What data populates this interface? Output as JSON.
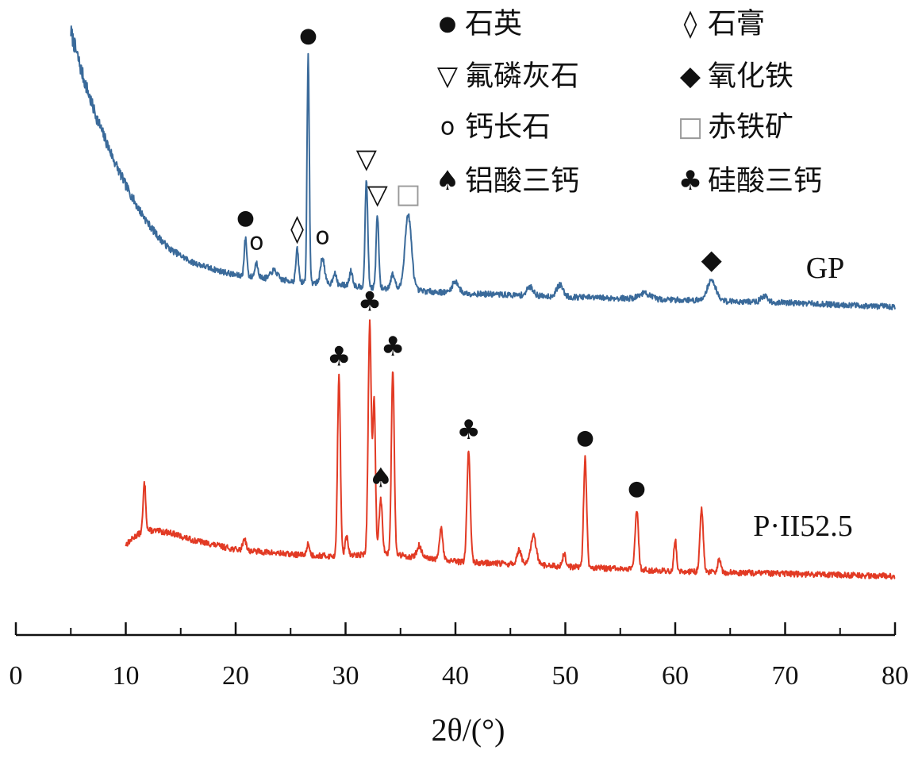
{
  "chart_data": {
    "type": "line",
    "xlabel": "2θ/(°)",
    "xlim": [
      0,
      80
    ],
    "xticks": [
      0,
      10,
      20,
      30,
      40,
      50,
      60,
      70,
      80
    ],
    "grid": false,
    "legend_position": "top-right",
    "legend": [
      {
        "symbol": "●",
        "label": "石英"
      },
      {
        "symbol": "◊",
        "label": "石膏"
      },
      {
        "symbol": "▽",
        "label": "氟磷灰石"
      },
      {
        "symbol": "◆",
        "label": "氧化铁"
      },
      {
        "symbol": "o",
        "label": "钙长石"
      },
      {
        "symbol": "□",
        "label": "赤铁矿"
      },
      {
        "symbol": "♠",
        "label": "铝酸三钙"
      },
      {
        "symbol": "♣",
        "label": "硅酸三钙"
      }
    ],
    "series": [
      {
        "name": "GP",
        "color": "#3a6a9a",
        "x_start": 5,
        "x_end": 80,
        "baseline": [
          [
            5,
            1.0
          ],
          [
            6,
            0.86
          ],
          [
            7,
            0.74
          ],
          [
            8,
            0.64
          ],
          [
            9,
            0.55
          ],
          [
            10,
            0.47
          ],
          [
            11,
            0.4
          ],
          [
            12,
            0.34
          ],
          [
            13,
            0.29
          ],
          [
            14,
            0.25
          ],
          [
            16,
            0.205
          ],
          [
            18,
            0.18
          ],
          [
            20,
            0.16
          ],
          [
            25,
            0.14
          ],
          [
            30,
            0.125
          ],
          [
            35,
            0.11
          ],
          [
            40,
            0.098
          ],
          [
            50,
            0.085
          ],
          [
            60,
            0.075
          ],
          [
            70,
            0.065
          ],
          [
            80,
            0.05
          ]
        ],
        "peaks": [
          {
            "x": 20.9,
            "h": 0.13,
            "w": 0.12,
            "marker": "●"
          },
          {
            "x": 21.9,
            "h": 0.05,
            "w": 0.15,
            "marker": "o"
          },
          {
            "x": 23.5,
            "h": 0.03,
            "w": 0.3
          },
          {
            "x": 25.6,
            "h": 0.11,
            "w": 0.12,
            "marker": "◊"
          },
          {
            "x": 26.6,
            "h": 0.78,
            "w": 0.1,
            "marker": "●"
          },
          {
            "x": 27.9,
            "h": 0.09,
            "w": 0.18,
            "marker": "o"
          },
          {
            "x": 29.0,
            "h": 0.04,
            "w": 0.15
          },
          {
            "x": 30.5,
            "h": 0.05,
            "w": 0.15
          },
          {
            "x": 31.9,
            "h": 0.37,
            "w": 0.12,
            "marker": "▽"
          },
          {
            "x": 32.9,
            "h": 0.25,
            "w": 0.12,
            "marker": "▽"
          },
          {
            "x": 34.3,
            "h": 0.05,
            "w": 0.2
          },
          {
            "x": 35.7,
            "h": 0.26,
            "w": 0.3,
            "marker": "□"
          },
          {
            "x": 40.0,
            "h": 0.04,
            "w": 0.3
          },
          {
            "x": 46.8,
            "h": 0.03,
            "w": 0.3
          },
          {
            "x": 49.5,
            "h": 0.04,
            "w": 0.3
          },
          {
            "x": 57.2,
            "h": 0.02,
            "w": 0.5
          },
          {
            "x": 63.3,
            "h": 0.07,
            "w": 0.4,
            "marker": "◆"
          },
          {
            "x": 68.1,
            "h": 0.02,
            "w": 0.3
          }
        ]
      },
      {
        "name": "P·II52.5",
        "color": "#e23a24",
        "x_start": 10,
        "x_end": 80,
        "baseline": [
          [
            10,
            0.16
          ],
          [
            11,
            0.2
          ],
          [
            12,
            0.22
          ],
          [
            14,
            0.21
          ],
          [
            16,
            0.18
          ],
          [
            20,
            0.14
          ],
          [
            25,
            0.12
          ],
          [
            30,
            0.11
          ],
          [
            33,
            0.13
          ],
          [
            36,
            0.11
          ],
          [
            40,
            0.09
          ],
          [
            45,
            0.08
          ],
          [
            50,
            0.07
          ],
          [
            60,
            0.05
          ],
          [
            70,
            0.04
          ],
          [
            80,
            0.03
          ]
        ],
        "peaks": [
          {
            "x": 11.7,
            "h": 0.2,
            "w": 0.12
          },
          {
            "x": 20.8,
            "h": 0.05,
            "w": 0.15
          },
          {
            "x": 26.6,
            "h": 0.05,
            "w": 0.12
          },
          {
            "x": 29.4,
            "h": 0.74,
            "w": 0.13,
            "marker": "♣"
          },
          {
            "x": 30.1,
            "h": 0.08,
            "w": 0.15
          },
          {
            "x": 32.2,
            "h": 0.95,
            "w": 0.14,
            "marker": "♣"
          },
          {
            "x": 32.6,
            "h": 0.62,
            "w": 0.12
          },
          {
            "x": 33.2,
            "h": 0.22,
            "w": 0.15,
            "marker": "♠"
          },
          {
            "x": 34.3,
            "h": 0.77,
            "w": 0.13,
            "marker": "♣"
          },
          {
            "x": 36.7,
            "h": 0.05,
            "w": 0.2
          },
          {
            "x": 38.7,
            "h": 0.13,
            "w": 0.15
          },
          {
            "x": 41.2,
            "h": 0.46,
            "w": 0.15,
            "marker": "♣"
          },
          {
            "x": 45.8,
            "h": 0.06,
            "w": 0.2
          },
          {
            "x": 47.1,
            "h": 0.12,
            "w": 0.25
          },
          {
            "x": 49.9,
            "h": 0.05,
            "w": 0.15
          },
          {
            "x": 51.8,
            "h": 0.45,
            "w": 0.14,
            "marker": "●"
          },
          {
            "x": 56.5,
            "h": 0.25,
            "w": 0.15,
            "marker": "●"
          },
          {
            "x": 60.0,
            "h": 0.13,
            "w": 0.12
          },
          {
            "x": 62.4,
            "h": 0.26,
            "w": 0.15
          },
          {
            "x": 64.0,
            "h": 0.05,
            "w": 0.15
          }
        ]
      }
    ]
  }
}
